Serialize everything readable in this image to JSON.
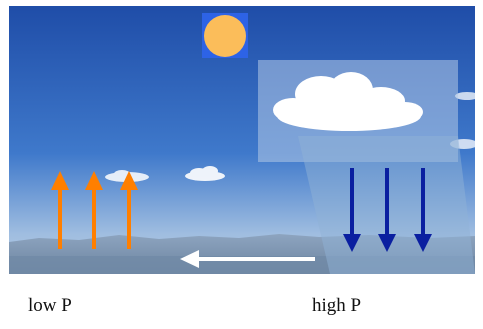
{
  "labels": {
    "low_pressure": "low P",
    "high_pressure": "high P"
  },
  "icons": {
    "sun": "sun-icon",
    "cloud": "cloud-icon",
    "rising_air": "up-arrow-icon",
    "sinking_air": "down-arrow-icon",
    "surface_wind": "left-arrow-icon"
  },
  "colors": {
    "sky_top": "#1f4da8",
    "sky_mid": "#3f79cb",
    "sky_horizon": "#9fbde0",
    "ground": "#7d93ad",
    "sun": "#fbbd5a",
    "sun_bbox": "#2d63e6",
    "rising_arrows": "#ff7f00",
    "sinking_arrows": "#0a1fa0",
    "surface_arrow": "#ffffff",
    "high_column": "#8fb2d6"
  }
}
